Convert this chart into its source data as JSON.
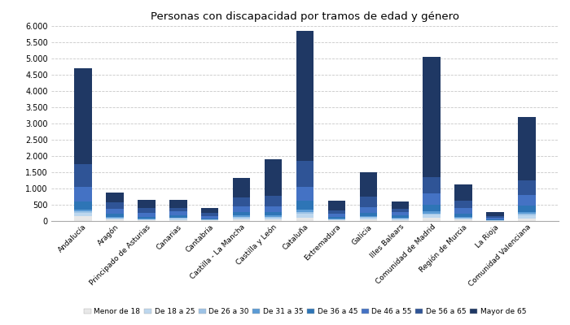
{
  "title": "Personas con discapacidad por tramos de edad y género",
  "categories": [
    "Andalucía",
    "Aragón",
    "Principado de Asturias",
    "Canarias",
    "Cantabria",
    "Castilla - La Mancha",
    "Castilla y León",
    "Cataluña",
    "Extremadura",
    "Galicia",
    "Illes Balears",
    "Comunidad de Madrid",
    "Región de Murcia",
    "La Rioja",
    "Comunidad Valenciana"
  ],
  "age_groups": [
    "Menor de 18",
    "De 18 a 25",
    "De 26 a 30",
    "De 31 a 35",
    "De 36 a 45",
    "De 46 a 55",
    "De 56 a 65",
    "Mayor de 65"
  ],
  "colors": [
    "#e8e8e8",
    "#bdd7ee",
    "#9dc3e6",
    "#5b9bd5",
    "#2e75b6",
    "#4472c4",
    "#2f5496",
    "#1f3864"
  ],
  "stacked_data": {
    "Menor de 18": [
      150,
      40,
      20,
      35,
      15,
      50,
      50,
      100,
      25,
      50,
      30,
      100,
      40,
      8,
      80
    ],
    "De 18 a 25": [
      100,
      40,
      25,
      35,
      15,
      60,
      60,
      130,
      25,
      55,
      35,
      90,
      45,
      8,
      90
    ],
    "De 26 a 30": [
      40,
      20,
      12,
      18,
      8,
      25,
      25,
      55,
      12,
      22,
      18,
      45,
      18,
      4,
      45
    ],
    "De 31 a 35": [
      60,
      25,
      18,
      22,
      12,
      35,
      35,
      70,
      18,
      30,
      22,
      60,
      25,
      6,
      60
    ],
    "De 36 a 45": [
      250,
      90,
      60,
      70,
      35,
      110,
      110,
      260,
      55,
      90,
      60,
      210,
      90,
      20,
      190
    ],
    "De 46 a 55": [
      450,
      160,
      115,
      110,
      70,
      170,
      170,
      430,
      85,
      170,
      100,
      350,
      170,
      42,
      340
    ],
    "De 56 a 65": [
      700,
      205,
      160,
      110,
      95,
      280,
      330,
      805,
      100,
      323,
      115,
      495,
      232,
      62,
      445
    ],
    "Mayor de 65": [
      2950,
      300,
      250,
      260,
      160,
      600,
      1120,
      4000,
      300,
      750,
      220,
      3700,
      500,
      120,
      1940
    ]
  },
  "ylim": [
    0,
    6000
  ],
  "fig_width": 7.0,
  "fig_height": 4.0,
  "bg_color": "#ffffff",
  "grid_color": "#c8c8c8"
}
